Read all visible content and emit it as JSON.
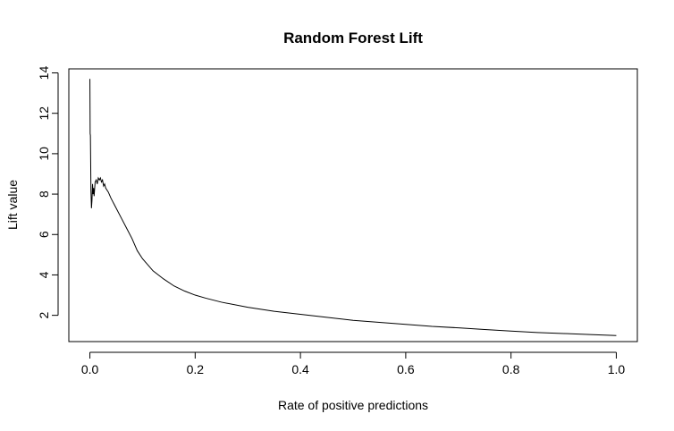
{
  "chart_data": {
    "type": "line",
    "title": "Random Forest Lift",
    "xlabel": "Rate of positive predictions",
    "ylabel": "Lift value",
    "xlim": [
      -0.04,
      1.04
    ],
    "ylim": [
      0.7,
      14.2
    ],
    "x_ticks": [
      0.0,
      0.2,
      0.4,
      0.6,
      0.8,
      1.0
    ],
    "x_tick_labels": [
      "0.0",
      "0.2",
      "0.4",
      "0.6",
      "0.8",
      "1.0"
    ],
    "y_ticks": [
      2,
      4,
      6,
      8,
      10,
      12,
      14
    ],
    "y_tick_labels": [
      "2",
      "4",
      "6",
      "8",
      "10",
      "12",
      "14"
    ],
    "grid": false,
    "colors": {
      "line": "#000000",
      "axes": "#000000",
      "background": "#ffffff"
    },
    "series": [
      {
        "x": [
          0.0,
          0.0005,
          0.001,
          0.0015,
          0.002,
          0.003,
          0.004,
          0.005,
          0.006,
          0.007,
          0.008,
          0.01,
          0.012,
          0.014,
          0.016,
          0.018,
          0.02,
          0.022,
          0.024,
          0.026,
          0.028,
          0.03,
          0.035,
          0.04,
          0.05,
          0.06,
          0.07,
          0.08,
          0.09,
          0.1,
          0.12,
          0.14,
          0.16,
          0.18,
          0.2,
          0.22,
          0.25,
          0.3,
          0.35,
          0.4,
          0.45,
          0.5,
          0.55,
          0.6,
          0.65,
          0.7,
          0.75,
          0.8,
          0.85,
          0.9,
          0.95,
          1.0
        ],
        "y": [
          13.7,
          11.0,
          10.9,
          9.6,
          8.2,
          7.3,
          7.7,
          8.5,
          8.0,
          8.3,
          7.9,
          8.6,
          8.7,
          8.5,
          8.8,
          8.7,
          8.8,
          8.6,
          8.7,
          8.4,
          8.5,
          8.3,
          8.1,
          7.8,
          7.3,
          6.8,
          6.3,
          5.8,
          5.2,
          4.8,
          4.2,
          3.8,
          3.45,
          3.2,
          3.0,
          2.85,
          2.65,
          2.4,
          2.2,
          2.05,
          1.9,
          1.75,
          1.65,
          1.55,
          1.45,
          1.38,
          1.3,
          1.22,
          1.15,
          1.1,
          1.05,
          1.0
        ]
      }
    ]
  }
}
